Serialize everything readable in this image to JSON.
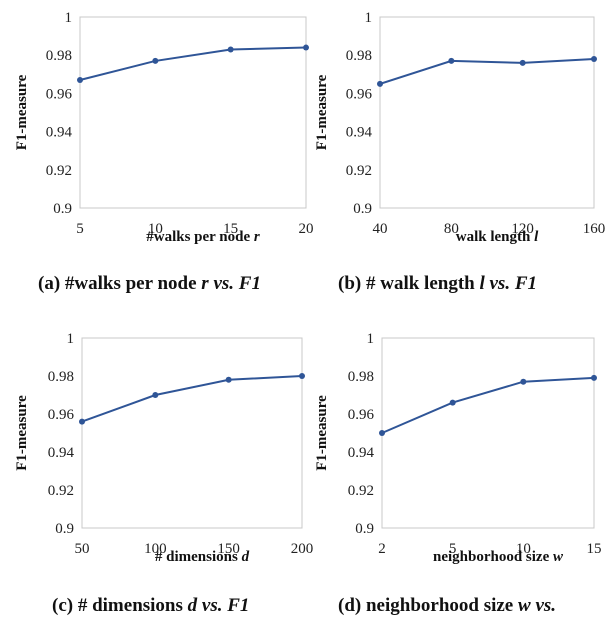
{
  "chart_data": [
    {
      "type": "line",
      "caption": {
        "pre": "(a) #walks per node ",
        "var": "r",
        "mid": " vs. ",
        "metric": "F1"
      },
      "xlabel": {
        "text": "#walks per node ",
        "var": "r"
      },
      "ylabel": "F1-measure",
      "x": [
        5,
        10,
        15,
        20
      ],
      "xticks": [
        "5",
        "10",
        "15",
        "20"
      ],
      "values": [
        0.967,
        0.977,
        0.983,
        0.984
      ],
      "ylim": [
        0.9,
        1
      ],
      "yticks": [
        "0.9",
        "0.92",
        "0.94",
        "0.96",
        "0.98",
        "1"
      ],
      "grid": false,
      "color": "#2f5597"
    },
    {
      "type": "line",
      "caption": {
        "pre": "(b) # walk length ",
        "var": "l",
        "mid": " vs. ",
        "metric": "F1"
      },
      "xlabel": {
        "text": "walk length ",
        "var": "l"
      },
      "ylabel": "F1-measure",
      "x": [
        40,
        80,
        120,
        160
      ],
      "xticks": [
        "40",
        "80",
        "120",
        "160"
      ],
      "values": [
        0.965,
        0.977,
        0.976,
        0.978
      ],
      "ylim": [
        0.9,
        1
      ],
      "yticks": [
        "0.9",
        "0.92",
        "0.94",
        "0.96",
        "0.98",
        "1"
      ],
      "grid": false,
      "color": "#2f5597"
    },
    {
      "type": "line",
      "caption": {
        "pre": "(c) # dimensions ",
        "var": "d",
        "mid": " vs. ",
        "metric": "F1"
      },
      "xlabel": {
        "text": "# dimensions ",
        "var": "d"
      },
      "ylabel": "F1-measure",
      "x": [
        50,
        100,
        150,
        200
      ],
      "xticks": [
        "50",
        "100",
        "150",
        "200"
      ],
      "values": [
        0.956,
        0.97,
        0.978,
        0.98
      ],
      "ylim": [
        0.9,
        1
      ],
      "yticks": [
        "0.9",
        "0.92",
        "0.94",
        "0.96",
        "0.98",
        "1"
      ],
      "grid": false,
      "color": "#2f5597"
    },
    {
      "type": "line",
      "caption": {
        "pre": "(d) neighborhood size ",
        "var": "w",
        "mid": " vs. ",
        "metric": ""
      },
      "xlabel": {
        "text": "neighborhood size ",
        "var": "w"
      },
      "ylabel": "F1-measure",
      "x": [
        2,
        5,
        10,
        15
      ],
      "x_positions": [
        0,
        1,
        2,
        3
      ],
      "xticks": [
        "2",
        "5",
        "10",
        "15"
      ],
      "values": [
        0.95,
        0.966,
        0.977,
        0.979
      ],
      "ylim": [
        0.9,
        1
      ],
      "yticks": [
        "0.9",
        "0.92",
        "0.94",
        "0.96",
        "0.98",
        "1"
      ],
      "grid": false,
      "color": "#2f5597"
    }
  ]
}
